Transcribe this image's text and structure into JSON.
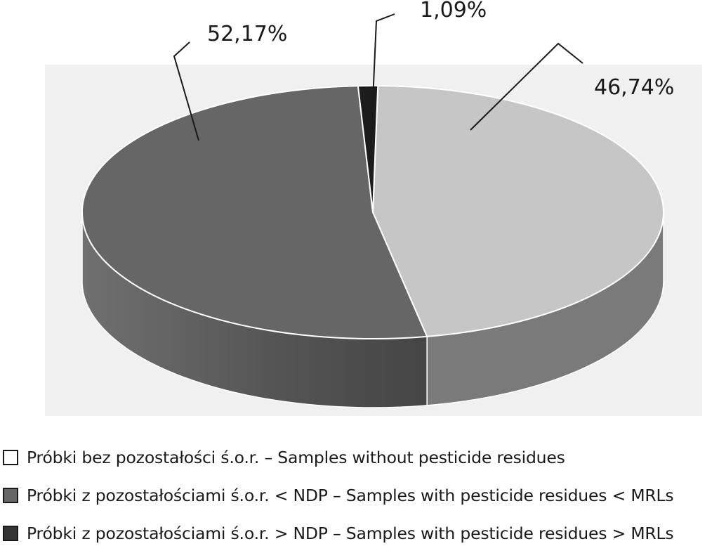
{
  "chart_data": {
    "type": "pie",
    "style": "3d",
    "title": "",
    "slices": [
      {
        "label": "Próbki bez pozostałości ś.o.r. – Samples without pesticide residues",
        "value": 46.74,
        "display": "46,74%",
        "color": "#c6c6c6",
        "side_color": "#7a7a7a"
      },
      {
        "label": "Próbki z pozostałościami ś.o.r. < NDP – Samples with pesticide residues < MRLs",
        "value": 52.17,
        "display": "52,17%",
        "color": "#666666",
        "side_color": "#4d4d4d"
      },
      {
        "label": "Próbki z pozostałościami ś.o.r. > NDP – Samples with pesticide residues > MRLs",
        "value": 1.09,
        "display": "1,09%",
        "color": "#1c1c1c",
        "side_color": "#111111"
      }
    ]
  },
  "legend": {
    "items": [
      {
        "label": "Próbki bez pozostałości ś.o.r. – Samples without pesticide residues",
        "swatch_color": "#ffffff"
      },
      {
        "label": "Próbki z pozostałościami ś.o.r. < NDP – Samples with pesticide residues < MRLs",
        "swatch_color": "#666666"
      },
      {
        "label": "Próbki z pozostałościami ś.o.r. > NDP – Samples with pesticide residues > MRLs",
        "swatch_color": "#333333"
      }
    ]
  }
}
